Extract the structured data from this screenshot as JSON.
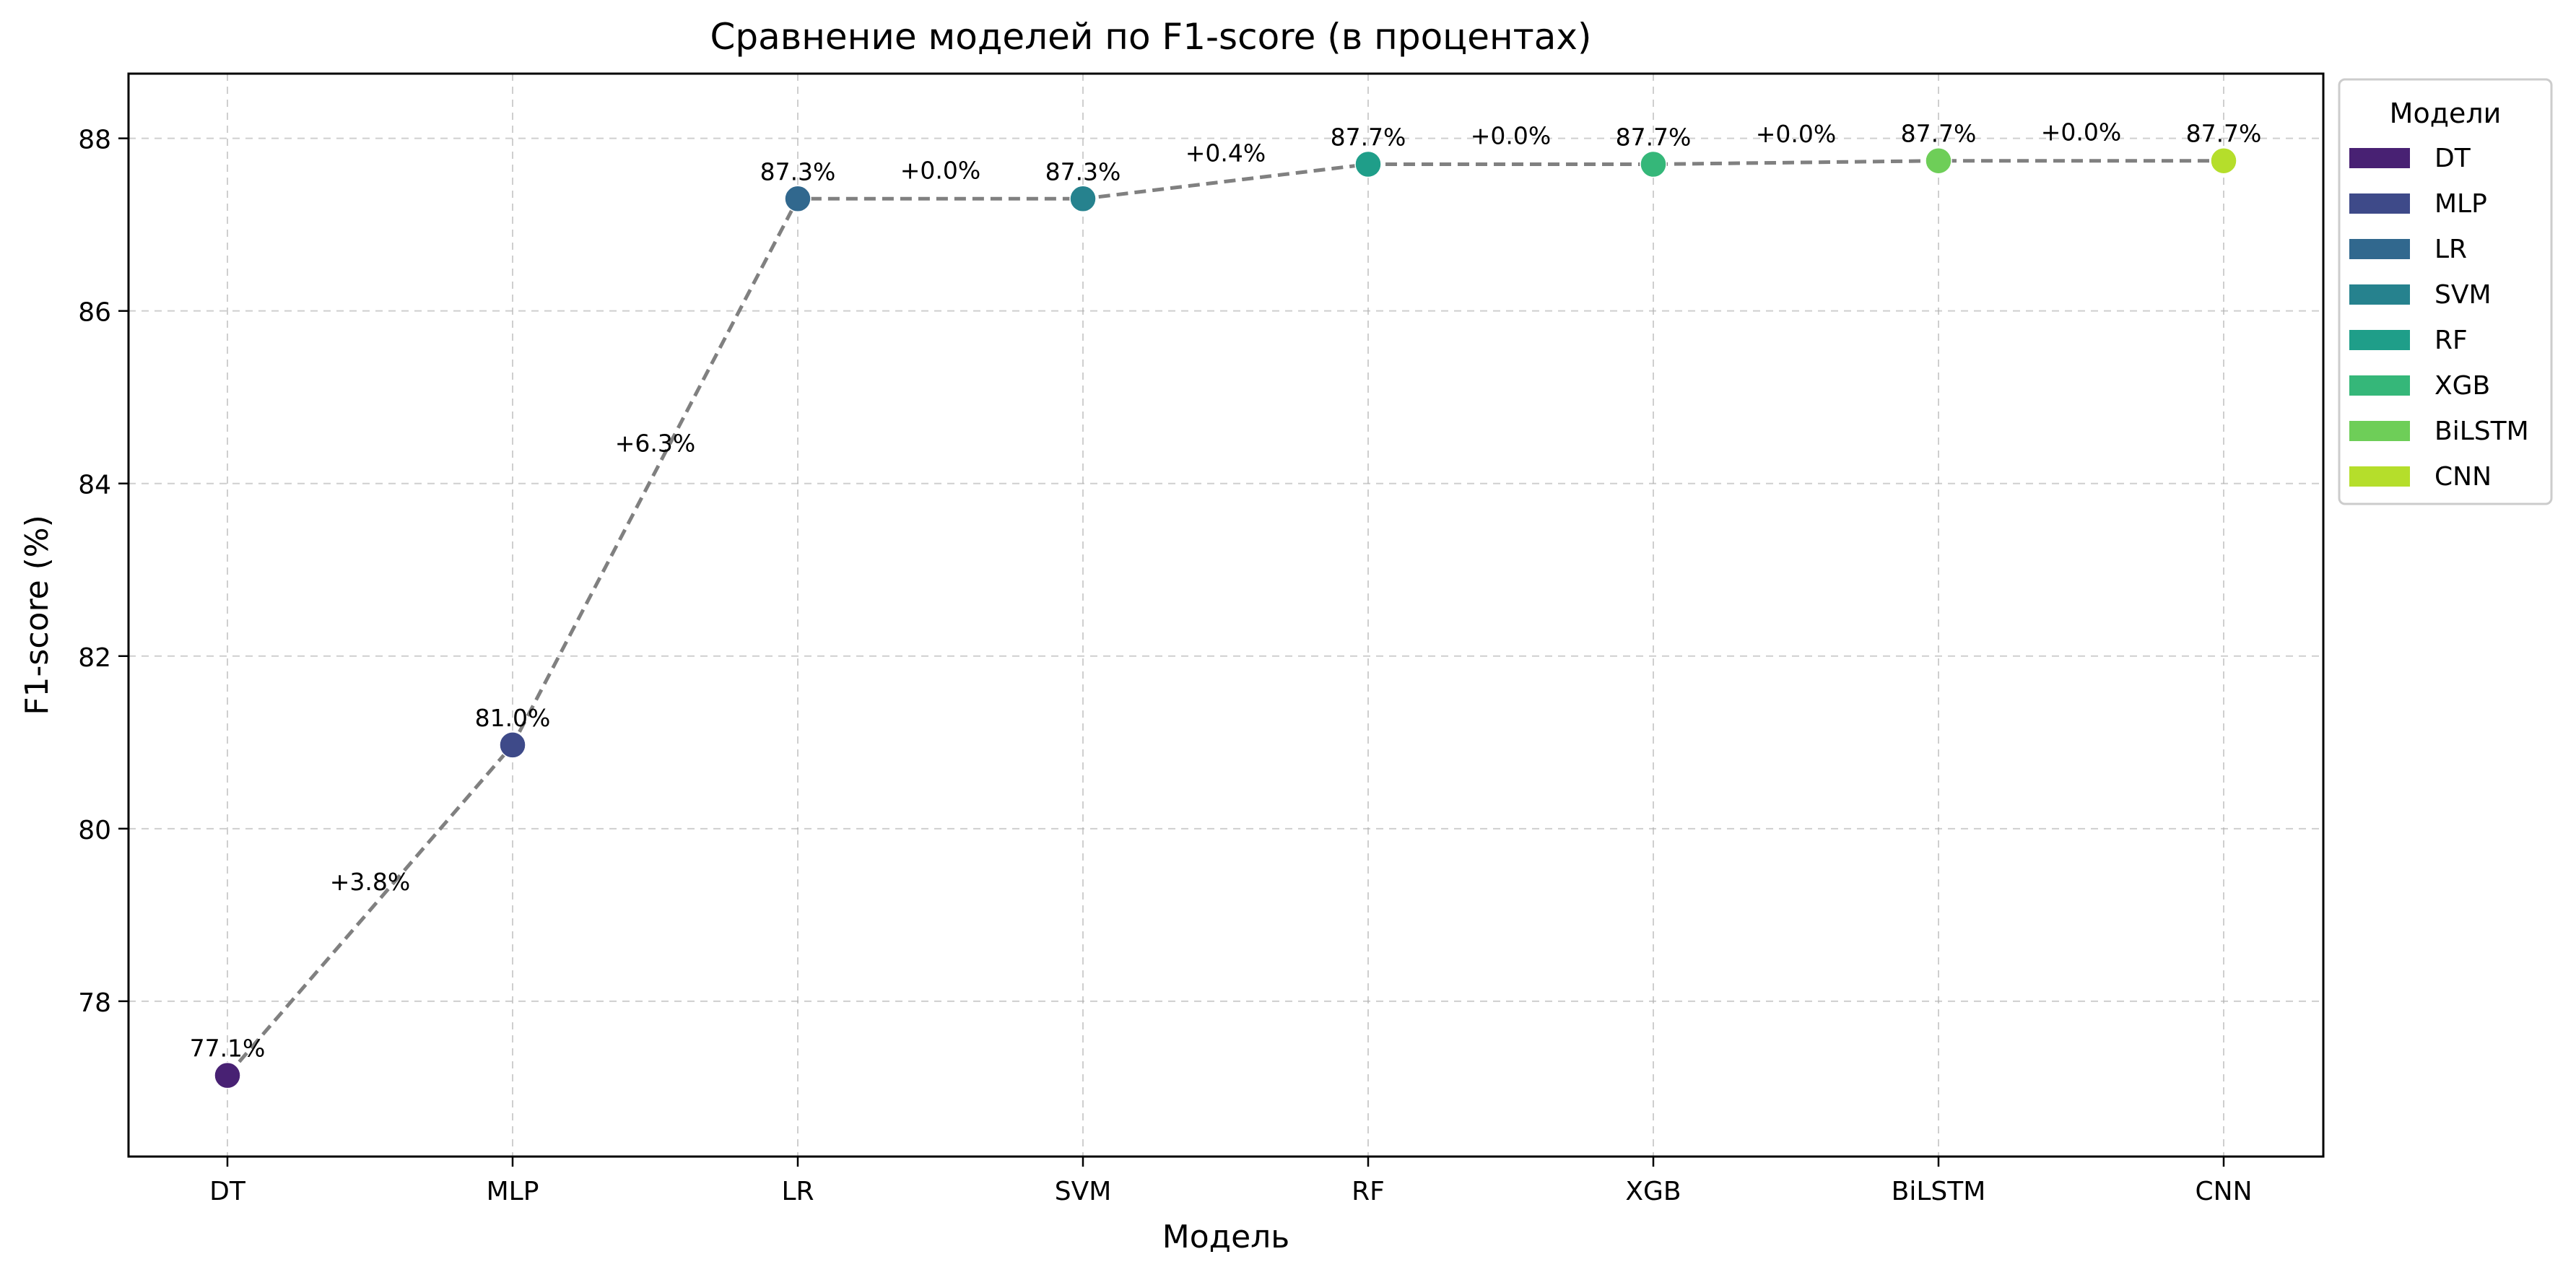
{
  "chart_data": {
    "type": "line",
    "title": "Сравнение моделей по F1-score (в процентах)",
    "xlabel": "Модель",
    "ylabel": "F1-score (%)",
    "categories": [
      "DT",
      "MLP",
      "LR",
      "SVM",
      "RF",
      "XGB",
      "BiLSTM",
      "CNN"
    ],
    "values": [
      77.14,
      80.97,
      87.3,
      87.3,
      87.7,
      87.7,
      87.74,
      87.74
    ],
    "point_labels": [
      "77.1%",
      "81.0%",
      "87.3%",
      "87.3%",
      "87.7%",
      "87.7%",
      "87.7%",
      "87.7%"
    ],
    "delta_labels": [
      "+3.8%",
      "+6.3%",
      "+0.0%",
      "+0.4%",
      "+0.0%",
      "+0.0%",
      "+0.0%"
    ],
    "colors": [
      "#482173",
      "#3e4a89",
      "#31688e",
      "#26828e",
      "#1f9e89",
      "#35b779",
      "#6ece58",
      "#b5de2b"
    ],
    "ylim": [
      76.2,
      88.75
    ],
    "yticks": [
      78,
      80,
      82,
      84,
      86,
      88
    ],
    "grid": true,
    "line_style": "dashed",
    "line_color": "#808080",
    "legend": {
      "title": "Модели",
      "placement": "outside-right",
      "entries": [
        "DT",
        "MLP",
        "LR",
        "SVM",
        "RF",
        "XGB",
        "BiLSTM",
        "CNN"
      ]
    }
  }
}
